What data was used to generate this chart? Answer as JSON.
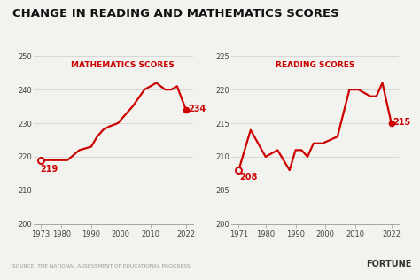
{
  "title": "CHANGE IN READING AND MATHEMATICS SCORES",
  "math_label": "MATHEMATICS SCORES",
  "reading_label": "READING SCORES",
  "source": "SOURCE: THE NATIONAL ASSESSMENT OF EDUCATIONAL PROGRESS",
  "brand": "FORTUNE",
  "math_x": [
    1973,
    1978,
    1982,
    1986,
    1990,
    1992,
    1994,
    1996,
    1999,
    2004,
    2008,
    2012,
    2015,
    2017,
    2019,
    2022
  ],
  "math_y": [
    219,
    219,
    219,
    222,
    223,
    226,
    228,
    229,
    230,
    235,
    240,
    242,
    240,
    240,
    241,
    234
  ],
  "math_start_label": "219",
  "math_end_label": "234",
  "reading_x": [
    1971,
    1975,
    1980,
    1984,
    1988,
    1990,
    1992,
    1994,
    1996,
    1999,
    2004,
    2008,
    2011,
    2015,
    2017,
    2019,
    2022
  ],
  "reading_y": [
    208,
    214,
    210,
    211,
    208,
    211,
    211,
    210,
    212,
    212,
    213,
    220,
    220,
    219,
    219,
    221,
    215
  ],
  "reading_start_label": "208",
  "reading_end_label": "215",
  "line_color": "#cc0000",
  "bg_color": "#f2f2ee",
  "math_ylim": [
    200,
    250
  ],
  "math_yticks": [
    200,
    210,
    220,
    230,
    240,
    250
  ],
  "reading_ylim": [
    200,
    225
  ],
  "reading_yticks": [
    200,
    205,
    210,
    215,
    220,
    225
  ],
  "math_xticks": [
    1973,
    1980,
    1990,
    2000,
    2010,
    2022
  ],
  "reading_xticks": [
    1971,
    1980,
    1990,
    2000,
    2010,
    2022
  ],
  "title_fontsize": 9.5,
  "label_fontsize": 6.5,
  "tick_fontsize": 6.0,
  "annot_fontsize": 7.0,
  "source_fontsize": 4.2,
  "brand_fontsize": 7.0
}
